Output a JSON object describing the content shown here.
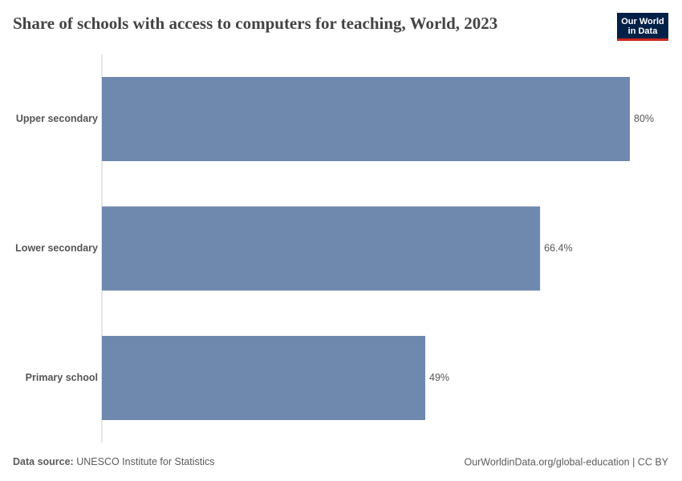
{
  "chart_data": {
    "type": "hbar",
    "title": "Share of schools with access to computers for teaching, World, 2023",
    "categories": [
      "Upper secondary",
      "Lower secondary",
      "Primary school"
    ],
    "values": [
      80,
      66.4,
      49
    ],
    "value_labels": [
      "80%",
      "66.4%",
      "49%"
    ],
    "color": "#6f88ae",
    "source_label": "Data source:",
    "source": "UNESCO Institute for Statistics",
    "footer_right": "OurWorldinData.org/global-education | CC BY",
    "logo": [
      "Our World",
      "in Data"
    ]
  }
}
